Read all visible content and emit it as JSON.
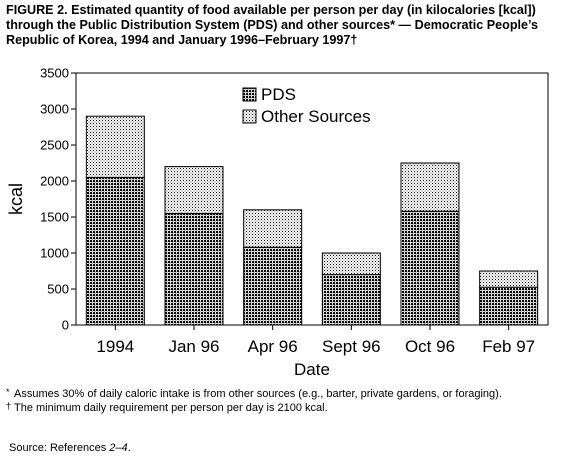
{
  "caption": {
    "title": "FIGURE 2. Estimated quantity of food available per person per day (in kilocalories [kcal]) through the Public Distribution System (PDS) and other sources* — Democratic People’s Republic of Korea, 1994 and January 1996–February 1997†"
  },
  "chart_data": {
    "type": "bar",
    "stacked": true,
    "title": "",
    "xlabel": "Date",
    "ylabel": "kcal",
    "categories": [
      "1994",
      "Jan 96",
      "Apr 96",
      "Sept 96",
      "Oct 96",
      "Feb 97"
    ],
    "series": [
      {
        "name": "PDS",
        "values": [
          2050,
          1550,
          1080,
          700,
          1580,
          525
        ],
        "color": "#5a5a5a",
        "pattern": "dense-dots"
      },
      {
        "name": "Other Sources",
        "values": [
          850,
          650,
          520,
          300,
          670,
          225
        ],
        "color": "#c8c8c8",
        "pattern": "light-dots"
      }
    ],
    "ylim": [
      0,
      3500
    ],
    "yticks": [
      0,
      500,
      1000,
      1500,
      2000,
      2500,
      3000,
      3500
    ],
    "grid": false,
    "legend_position": "top-center"
  },
  "notes": [
    {
      "mark": "*",
      "text": "Assumes 30% of daily caloric intake is from other sources (e.g., barter, private gardens, or foraging)."
    },
    {
      "mark": "†",
      "text": "The minimum daily requirement per person per day is 2100 kcal."
    }
  ],
  "source": {
    "prefix": "Source: References ",
    "refs": "2–4",
    "suffix": "."
  }
}
